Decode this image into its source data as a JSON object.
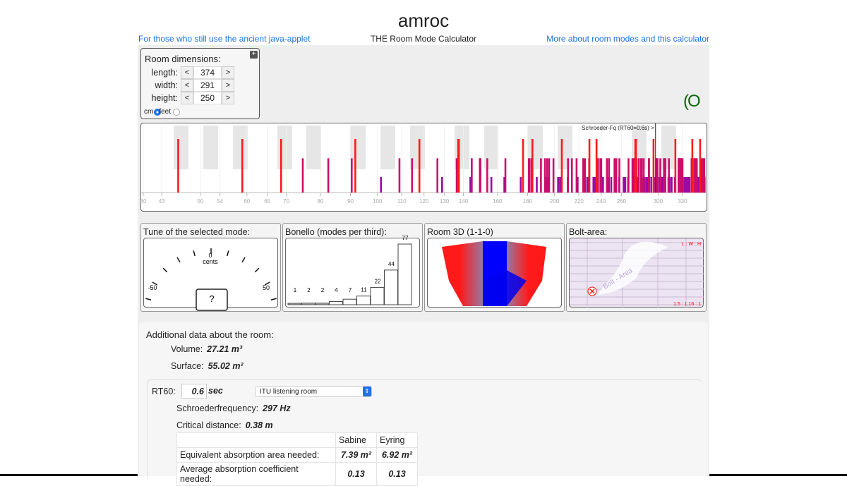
{
  "header": {
    "title": "amroc",
    "subtitle": "THE Room Mode Calculator",
    "left_link": "For those who still use the ancient java-applet",
    "right_link": "More about room modes and this calculator"
  },
  "dimensions": {
    "heading": "Room dimensions:",
    "expand_icon": "plus-square-icon",
    "fields": [
      {
        "label": "length:",
        "value": "374"
      },
      {
        "label": "width:",
        "value": "291"
      },
      {
        "label": "height:",
        "value": "250"
      }
    ],
    "dec": "<",
    "inc": ">",
    "unit_cm": "cm",
    "unit_feet": "feet",
    "selected_unit": "cm"
  },
  "logo_text": "(O",
  "chart_data": {
    "type": "bar",
    "x_scale": "log",
    "xlim": [
      40,
      360
    ],
    "x_unit": "Hz",
    "tick_labels": [
      "40",
      "43",
      "50",
      "54",
      "60",
      "65",
      "70",
      "80",
      "90",
      "100",
      "110",
      "120",
      "130",
      "140",
      "160",
      "180",
      "200",
      "220",
      "240",
      "260",
      "300",
      "330"
    ],
    "ticks": [
      40,
      43,
      50,
      54,
      60,
      65,
      70,
      80,
      90,
      100,
      110,
      120,
      130,
      140,
      160,
      180,
      200,
      220,
      240,
      260,
      300,
      330
    ],
    "room_m": [
      3.74,
      2.91,
      2.5
    ],
    "mode_types": [
      {
        "type": "axial",
        "color": "#ff1a1a",
        "level": 1.0
      },
      {
        "type": "tangential",
        "color": "#cc0d6a",
        "level": 0.64
      },
      {
        "type": "oblique",
        "color": "#9a0aa6",
        "level": 0.29
      }
    ],
    "axial_modes_hz": [
      45.9,
      58.9,
      68.6,
      91.7,
      117.9,
      137.2,
      137.6,
      176.8,
      183.4,
      205.8,
      229.3,
      235.7,
      274.4,
      275.2,
      294.7,
      321.0,
      343.0
    ],
    "schroeder": {
      "label": "Schroeder-Fq (RT60=0.6s) >",
      "value_hz": 297
    }
  },
  "tune": {
    "title": "Tune of the selected mode:",
    "zero": "0",
    "unit": "cents",
    "min": "-50",
    "max": "50",
    "value": "?"
  },
  "bonello": {
    "title": "Bonello (modes per third):",
    "values": [
      1,
      2,
      2,
      4,
      7,
      11,
      22,
      44,
      77
    ]
  },
  "room3d": {
    "title": "Room 3D (1-1-0)"
  },
  "bolt": {
    "title": "Bolt-area:",
    "label": "Bolt - Area",
    "ratio_header": "L : W : H",
    "ratio": "1.5 : 1.16 : 1",
    "status_icon": "red-x-circle-icon"
  },
  "additional": {
    "heading": "Additional data about the room:",
    "volume_label": "Volume:",
    "volume": "27.21 m³",
    "surface_label": "Surface:",
    "surface": "55.02 m²",
    "rt60_label": "RT60:",
    "rt60": "0.6",
    "rt60_unit": "sec",
    "room_type": "ITU listening room",
    "schroeder_label": "Schroederfrequency:",
    "schroeder": "297 Hz",
    "critical_label": "Critical distance:",
    "critical": "0.38 m",
    "table": {
      "headers": [
        "",
        "Sabine",
        "Eyring"
      ],
      "rows": [
        [
          "Equivalent absorption area needed:",
          "7.39 m²",
          "6.92 m²"
        ],
        [
          "Average absorption coefficient needed:",
          "0.13",
          "0.13"
        ]
      ]
    }
  }
}
